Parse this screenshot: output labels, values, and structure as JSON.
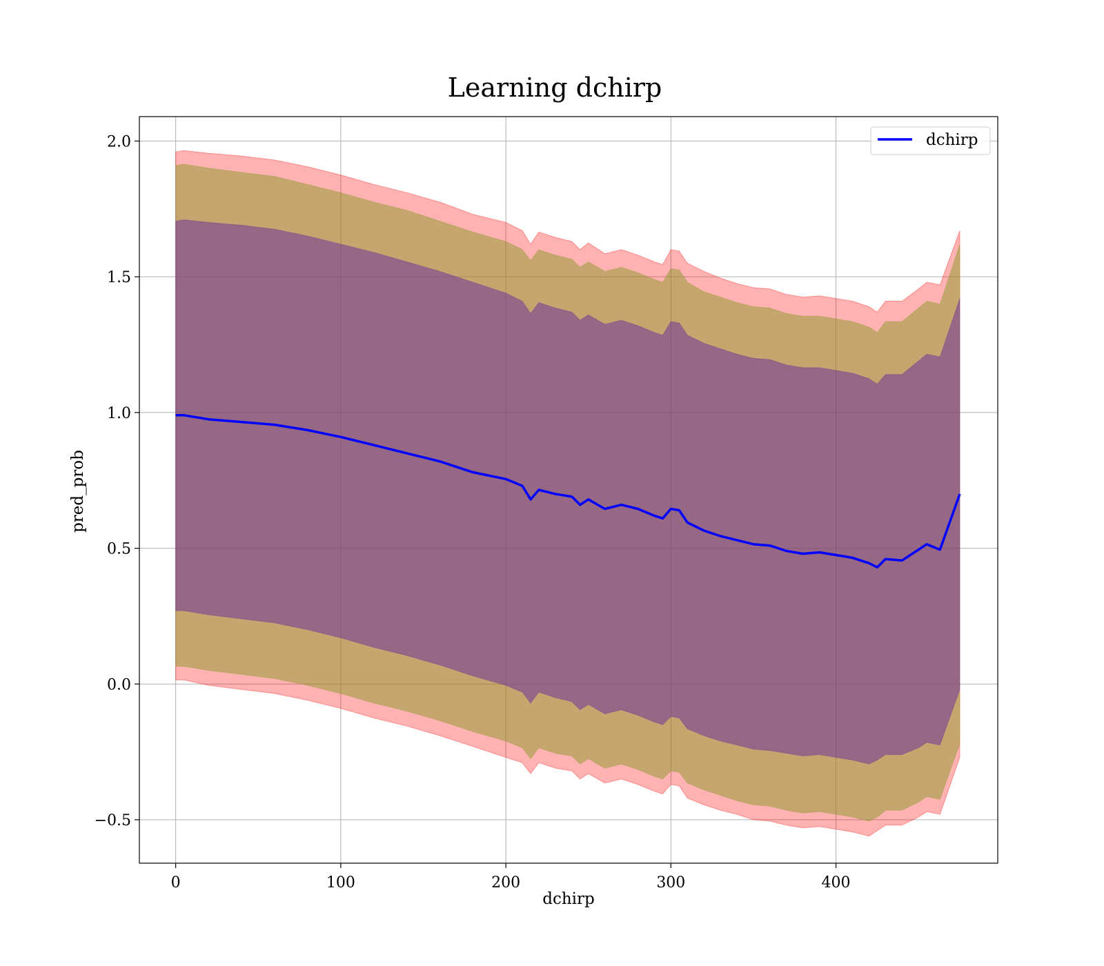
{
  "chart_data": {
    "type": "line",
    "title": "Learning dchirp",
    "xlabel": "dchirp",
    "ylabel": "pred_prob",
    "xlim": [
      -22,
      498
    ],
    "ylim": [
      -0.66,
      2.09
    ],
    "x_ticks": [
      0,
      100,
      200,
      300,
      400
    ],
    "x_tick_labels": [
      "0",
      "100",
      "200",
      "300",
      "400"
    ],
    "y_ticks": [
      -0.5,
      0.0,
      0.5,
      1.0,
      1.5,
      2.0
    ],
    "y_tick_labels": [
      "−0.5",
      "0.0",
      "0.5",
      "1.0",
      "1.5",
      "2.0"
    ],
    "grid": true,
    "legend": {
      "position": "top-right",
      "entries": [
        "dchirp"
      ]
    },
    "colors": {
      "line": "#0000ff",
      "outer_band": "#ff0000",
      "middle_band": "#8b9a2c",
      "inner_band": "#6a2a9b"
    },
    "series": [
      {
        "name": "dchirp",
        "x": [
          0,
          5,
          20,
          40,
          60,
          80,
          100,
          120,
          140,
          160,
          180,
          200,
          210,
          215,
          220,
          230,
          240,
          245,
          250,
          260,
          270,
          280,
          290,
          295,
          300,
          305,
          310,
          320,
          330,
          340,
          350,
          360,
          370,
          380,
          390,
          400,
          410,
          420,
          425,
          430,
          440,
          450,
          455,
          463,
          475
        ],
        "y": [
          0.99,
          0.99,
          0.975,
          0.965,
          0.955,
          0.935,
          0.91,
          0.88,
          0.85,
          0.82,
          0.78,
          0.755,
          0.73,
          0.68,
          0.715,
          0.7,
          0.69,
          0.66,
          0.68,
          0.645,
          0.66,
          0.645,
          0.62,
          0.61,
          0.645,
          0.64,
          0.595,
          0.565,
          0.545,
          0.53,
          0.515,
          0.51,
          0.49,
          0.48,
          0.485,
          0.475,
          0.465,
          0.445,
          0.43,
          0.46,
          0.455,
          0.495,
          0.515,
          0.495,
          0.7
        ]
      }
    ],
    "bands": [
      {
        "x": [
          0,
          5,
          20,
          40,
          60,
          80,
          100,
          120,
          140,
          160,
          180,
          200,
          210,
          215,
          220,
          230,
          240,
          245,
          250,
          260,
          270,
          280,
          290,
          295,
          300,
          305,
          310,
          320,
          330,
          340,
          350,
          360,
          370,
          380,
          390,
          400,
          410,
          420,
          425,
          430,
          440,
          450,
          455,
          463,
          475
        ],
        "upper": [
          1.96,
          1.965,
          1.955,
          1.945,
          1.93,
          1.905,
          1.875,
          1.84,
          1.81,
          1.775,
          1.73,
          1.7,
          1.67,
          1.62,
          1.665,
          1.645,
          1.63,
          1.6,
          1.625,
          1.585,
          1.6,
          1.58,
          1.555,
          1.545,
          1.6,
          1.595,
          1.55,
          1.52,
          1.495,
          1.475,
          1.46,
          1.455,
          1.435,
          1.425,
          1.43,
          1.42,
          1.41,
          1.39,
          1.37,
          1.41,
          1.41,
          1.455,
          1.48,
          1.47,
          1.67
        ],
        "lower": [
          0.015,
          0.015,
          -0.005,
          -0.02,
          -0.035,
          -0.06,
          -0.09,
          -0.125,
          -0.155,
          -0.19,
          -0.23,
          -0.27,
          -0.29,
          -0.33,
          -0.29,
          -0.31,
          -0.32,
          -0.35,
          -0.33,
          -0.365,
          -0.35,
          -0.37,
          -0.395,
          -0.405,
          -0.37,
          -0.375,
          -0.42,
          -0.445,
          -0.465,
          -0.48,
          -0.5,
          -0.505,
          -0.52,
          -0.53,
          -0.525,
          -0.535,
          -0.545,
          -0.56,
          -0.54,
          -0.52,
          -0.52,
          -0.49,
          -0.47,
          -0.48,
          -0.27
        ]
      },
      {
        "x": [
          0,
          5,
          20,
          40,
          60,
          80,
          100,
          120,
          140,
          160,
          180,
          200,
          210,
          215,
          220,
          230,
          240,
          245,
          250,
          260,
          270,
          280,
          290,
          295,
          300,
          305,
          310,
          320,
          330,
          340,
          350,
          360,
          370,
          380,
          390,
          400,
          410,
          420,
          425,
          430,
          440,
          450,
          455,
          463,
          475
        ],
        "upper": [
          1.91,
          1.915,
          1.9,
          1.885,
          1.87,
          1.84,
          1.81,
          1.775,
          1.745,
          1.705,
          1.665,
          1.63,
          1.6,
          1.56,
          1.6,
          1.58,
          1.565,
          1.535,
          1.555,
          1.52,
          1.535,
          1.515,
          1.49,
          1.48,
          1.53,
          1.525,
          1.48,
          1.445,
          1.425,
          1.405,
          1.39,
          1.385,
          1.365,
          1.355,
          1.355,
          1.345,
          1.335,
          1.315,
          1.295,
          1.335,
          1.335,
          1.385,
          1.41,
          1.4,
          1.62
        ],
        "lower": [
          0.065,
          0.065,
          0.05,
          0.035,
          0.02,
          -0.005,
          -0.035,
          -0.07,
          -0.1,
          -0.135,
          -0.175,
          -0.21,
          -0.235,
          -0.275,
          -0.235,
          -0.255,
          -0.265,
          -0.295,
          -0.275,
          -0.31,
          -0.295,
          -0.315,
          -0.34,
          -0.35,
          -0.32,
          -0.325,
          -0.365,
          -0.39,
          -0.41,
          -0.43,
          -0.445,
          -0.45,
          -0.465,
          -0.475,
          -0.47,
          -0.48,
          -0.49,
          -0.505,
          -0.49,
          -0.465,
          -0.465,
          -0.435,
          -0.415,
          -0.425,
          -0.22
        ]
      },
      {
        "x": [
          0,
          5,
          20,
          40,
          60,
          80,
          100,
          120,
          140,
          160,
          180,
          200,
          210,
          215,
          220,
          230,
          240,
          245,
          250,
          260,
          270,
          280,
          290,
          295,
          300,
          305,
          310,
          320,
          330,
          340,
          350,
          360,
          370,
          380,
          390,
          400,
          410,
          420,
          425,
          430,
          440,
          450,
          455,
          463,
          475
        ],
        "upper": [
          1.705,
          1.71,
          1.7,
          1.69,
          1.675,
          1.65,
          1.62,
          1.59,
          1.555,
          1.52,
          1.48,
          1.44,
          1.41,
          1.365,
          1.405,
          1.385,
          1.37,
          1.34,
          1.36,
          1.325,
          1.34,
          1.32,
          1.295,
          1.285,
          1.335,
          1.33,
          1.285,
          1.255,
          1.235,
          1.215,
          1.2,
          1.195,
          1.175,
          1.165,
          1.165,
          1.155,
          1.145,
          1.125,
          1.105,
          1.14,
          1.14,
          1.19,
          1.215,
          1.205,
          1.42
        ],
        "lower": [
          0.27,
          0.27,
          0.255,
          0.24,
          0.225,
          0.2,
          0.17,
          0.135,
          0.105,
          0.07,
          0.03,
          -0.005,
          -0.03,
          -0.07,
          -0.03,
          -0.05,
          -0.065,
          -0.095,
          -0.075,
          -0.11,
          -0.095,
          -0.115,
          -0.14,
          -0.15,
          -0.12,
          -0.125,
          -0.165,
          -0.19,
          -0.21,
          -0.225,
          -0.24,
          -0.245,
          -0.255,
          -0.265,
          -0.26,
          -0.27,
          -0.28,
          -0.295,
          -0.28,
          -0.26,
          -0.26,
          -0.235,
          -0.215,
          -0.225,
          -0.02
        ]
      }
    ]
  }
}
